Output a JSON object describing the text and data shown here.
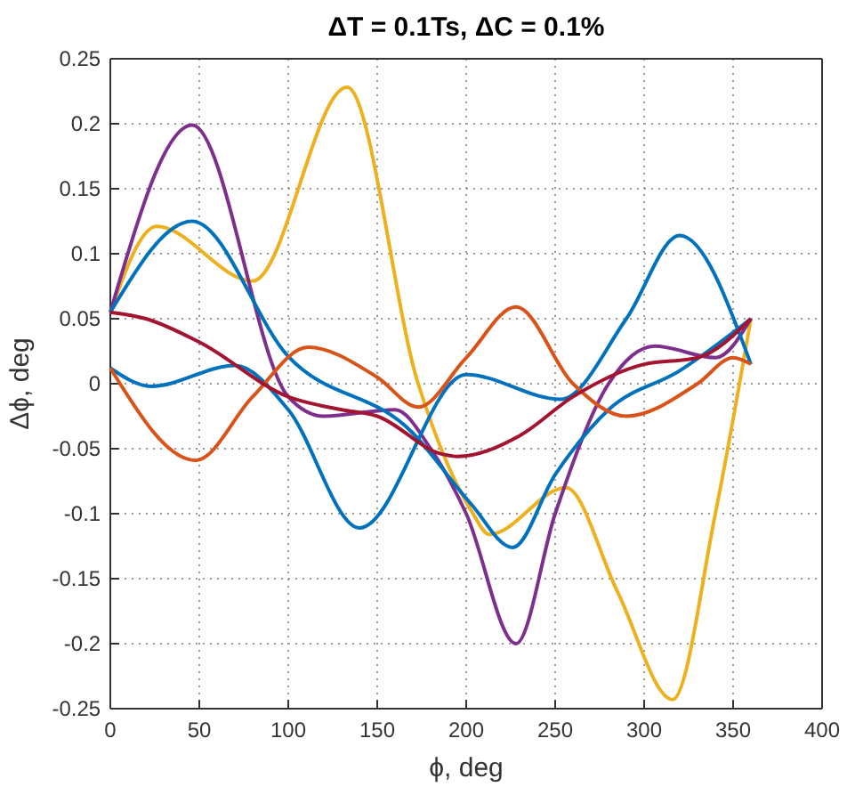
{
  "chart_data": {
    "type": "line",
    "title": "ΔT = 0.1Ts, ΔC = 0.1%",
    "xlabel": "ϕ, deg",
    "ylabel": "Δϕ, deg",
    "xlim": [
      0,
      400
    ],
    "xticks": [
      0,
      50,
      100,
      150,
      200,
      250,
      300,
      350,
      400
    ],
    "ylim": [
      -0.25,
      0.25
    ],
    "yticks": [
      -0.25,
      -0.2,
      -0.15,
      -0.1,
      -0.05,
      0,
      0.05,
      0.1,
      0.15,
      0.2,
      0.25
    ],
    "grid": true,
    "line_style": "solid",
    "marker": "none",
    "series": [
      {
        "color": "#edb120",
        "x": [
          0,
          26,
          80,
          133,
          173,
          203,
          213,
          256,
          285,
          316,
          340,
          360
        ],
        "values": [
          0.055,
          0.121,
          0.079,
          0.228,
          0.0,
          -0.098,
          -0.116,
          -0.08,
          -0.16,
          -0.243,
          -0.1,
          0.05
        ]
      },
      {
        "color": "#7e2f8e",
        "x": [
          0,
          46,
          100,
          120,
          160,
          180,
          200,
          228,
          250,
          280,
          306,
          340,
          360
        ],
        "values": [
          0.055,
          0.199,
          -0.01,
          -0.025,
          -0.02,
          -0.05,
          -0.1,
          -0.2,
          -0.1,
          0.0,
          0.029,
          0.02,
          0.05
        ]
      },
      {
        "color": "#0072bd",
        "x": [
          0,
          46,
          100,
          170,
          203,
          226,
          250,
          280,
          320,
          360
        ],
        "values": [
          0.055,
          0.125,
          0.021,
          -0.038,
          -0.093,
          -0.126,
          -0.07,
          -0.02,
          0.01,
          0.05
        ]
      },
      {
        "color": "#0072bd",
        "x": [
          0,
          23,
          70,
          100,
          140,
          200,
          253,
          290,
          320,
          360
        ],
        "values": [
          0.012,
          -0.002,
          0.014,
          -0.02,
          -0.111,
          0.007,
          -0.012,
          0.05,
          0.114,
          0.015
        ]
      },
      {
        "color": "#d95319",
        "x": [
          0,
          48,
          80,
          111,
          150,
          173,
          200,
          228,
          260,
          290,
          330,
          350,
          360
        ],
        "values": [
          0.012,
          -0.059,
          -0.01,
          0.028,
          0.005,
          -0.018,
          0.02,
          0.059,
          0.0,
          -0.025,
          0.0,
          0.02,
          0.015
        ]
      },
      {
        "color": "#a2142f",
        "x": [
          0,
          20,
          50,
          100,
          130,
          150,
          186,
          195,
          230,
          260,
          300,
          330,
          360
        ],
        "values": [
          0.055,
          0.05,
          0.032,
          -0.01,
          -0.02,
          -0.025,
          -0.054,
          -0.056,
          -0.04,
          -0.01,
          0.015,
          0.02,
          0.05
        ]
      }
    ]
  }
}
